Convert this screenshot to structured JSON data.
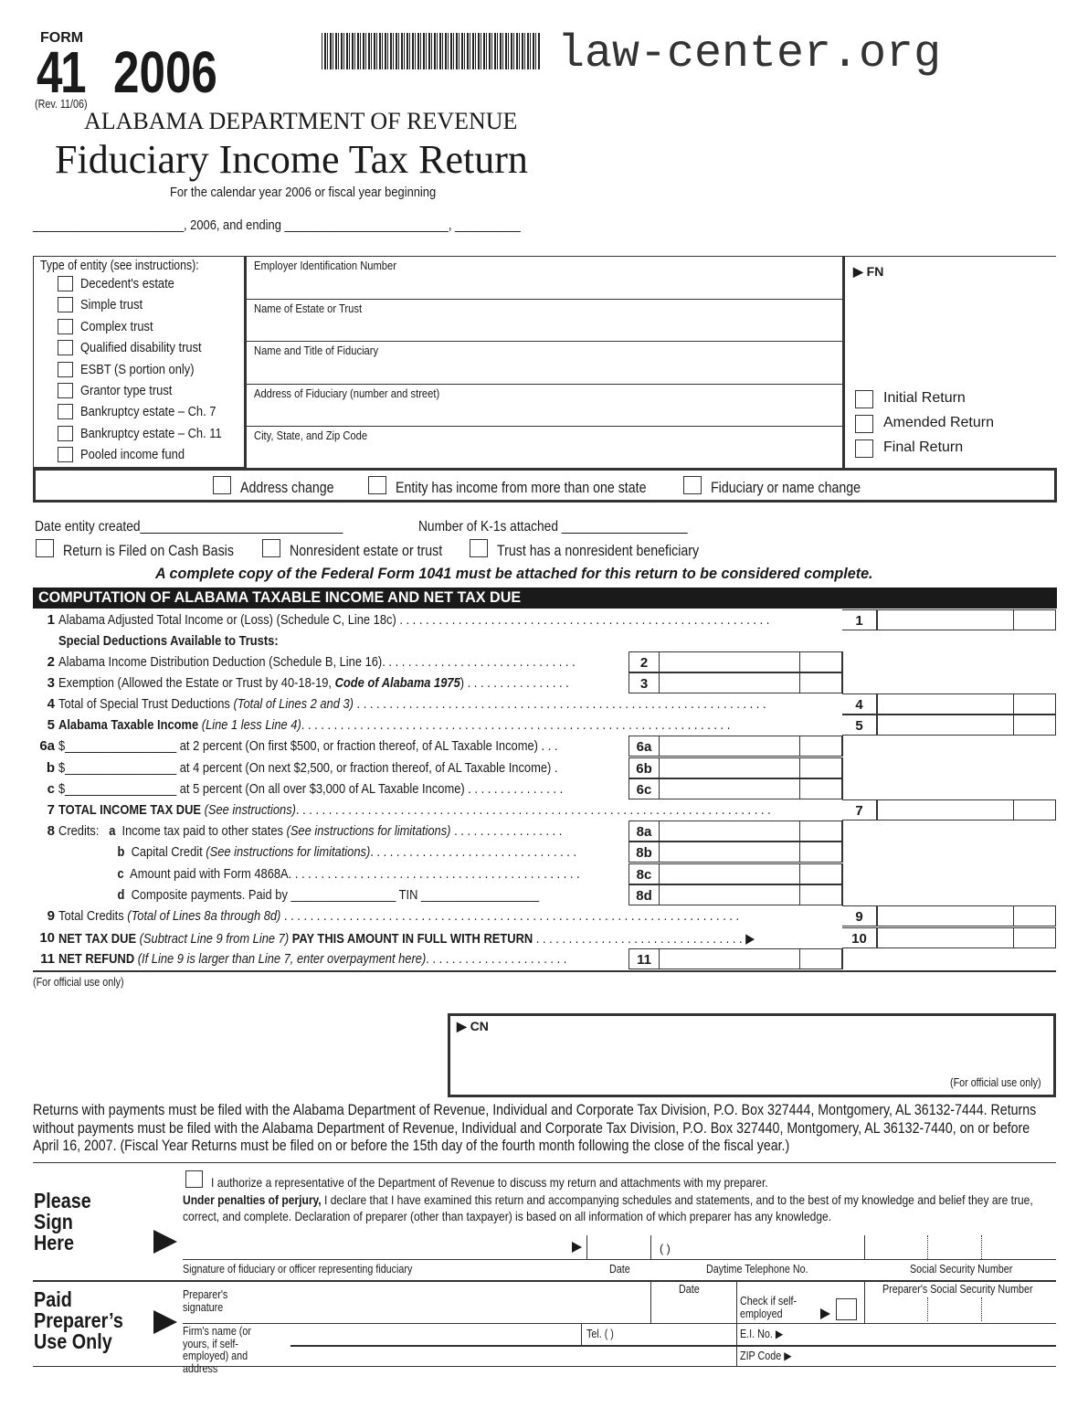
{
  "header": {
    "form_label": "FORM",
    "form_number": "41",
    "year": "2006",
    "revision": "(Rev. 11/06)",
    "department": "ALABAMA DEPARTMENT OF REVENUE",
    "title": "Fiduciary Income Tax Return",
    "period_line1": "For the calendar year 2006 or fiscal year beginning",
    "period_line2": "_______________________, 2006, and ending _________________________, __________",
    "watermark": "law-center.org"
  },
  "entity": {
    "heading": "Type of entity (see instructions):",
    "types": [
      "Decedent's estate",
      "Simple trust",
      "Complex trust",
      "Qualified disability trust",
      "ESBT (S portion only)",
      "Grantor type trust",
      "Bankruptcy estate – Ch. 7",
      "Bankruptcy estate – Ch. 11",
      "Pooled income fund"
    ]
  },
  "fields": [
    "Employer Identification Number",
    "Name of Estate or Trust",
    "Name and Title of Fiduciary",
    "Address of Fiduciary (number and street)",
    "City, State, and Zip Code"
  ],
  "fn_label": "FN",
  "return_types": [
    "Initial Return",
    "Amended Return",
    "Final Return"
  ],
  "changes": [
    "Address change",
    "Entity has income from more than one state",
    "Fiduciary or name change"
  ],
  "date_created": "Date entity created",
  "k1_count": "Number of K-1s attached",
  "options": [
    "Return is Filed on Cash Basis",
    "Nonresident estate or trust",
    "Trust has a nonresident beneficiary"
  ],
  "notice": "A complete copy of the Federal Form 1041 must be attached for this return to be considered complete.",
  "section_title": "COMPUTATION OF ALABAMA TAXABLE INCOME AND NET TAX DUE",
  "lines": [
    {
      "num": "1",
      "text": [
        [
          "Alabama Adjusted Total Income or (Loss) (Schedule C, Line 18c) . . . . . . . . . . . . . . . . . . . . . . . . . . . . . . . . . . . . . . . . . . . . . . . . . . . . . . . . .",
          ""
        ]
      ],
      "box": "right",
      "label": "1"
    },
    {
      "num": "",
      "text": [
        [
          "Special Deductions Available to Trusts:",
          "b"
        ]
      ],
      "box": "",
      "label": ""
    },
    {
      "num": "2",
      "text": [
        [
          "Alabama Income Distribution Deduction (Schedule B, Line 16). . . . . . . . . . . . . . . . . . . . . . . . . . . . . .",
          ""
        ]
      ],
      "box": "inner",
      "label": "2"
    },
    {
      "num": "3",
      "text": [
        [
          "Exemption (Allowed the Estate or Trust by 40-18-19, ",
          ""
        ],
        [
          "Code of Alabama 1975",
          "bi"
        ],
        [
          ") . . . . . . . . . . . . . . . .",
          ""
        ]
      ],
      "box": "inner",
      "label": "3"
    },
    {
      "num": "4",
      "text": [
        [
          "Total of Special Trust Deductions ",
          ""
        ],
        [
          "(Total of Lines 2 and 3)",
          "i"
        ],
        [
          " . . . . . . . . . . . . . . . . . . . . . . . . . . . . . . . . . . . . . . . . . . . . . . . . . . . . . . . . . . . . . . .",
          ""
        ]
      ],
      "box": "right",
      "label": "4"
    },
    {
      "num": "5",
      "text": [
        [
          "Alabama Taxable Income ",
          "b"
        ],
        [
          "(Line 1 less Line 4)",
          "i"
        ],
        [
          ". . . . . . . . . . . . . . . . . . . . . . . . . . . . . . . . . . . . . . . . . . . . . . . . . . . . . . . . . . . . . . . . . .",
          ""
        ]
      ],
      "box": "right",
      "label": "5"
    },
    {
      "num": "6a",
      "text": [
        [
          "$_________________ at 2 percent (On first $500, or fraction thereof, of AL Taxable Income) . . .",
          ""
        ]
      ],
      "box": "inner",
      "label": "6a"
    },
    {
      "num": "b",
      "text": [
        [
          "$_________________ at 4 percent (On next $2,500, or fraction thereof, of AL Taxable Income) .",
          ""
        ]
      ],
      "box": "inner",
      "label": "6b"
    },
    {
      "num": "c",
      "text": [
        [
          "$_________________ at 5 percent (On all over $3,000 of AL Taxable Income) . . . . . . . . . . . . . . .",
          ""
        ]
      ],
      "box": "inner",
      "label": "6c"
    },
    {
      "num": "7",
      "text": [
        [
          "TOTAL INCOME TAX DUE ",
          "b"
        ],
        [
          "(See instructions)",
          "i"
        ],
        [
          ". . . . . . . . . . . . . . . . . . . . . . . . . . . . . . . . . . . . . . . . . . . . . . . . . . . . . . . . . . . . . . . . . . . . . . . . .",
          ""
        ]
      ],
      "box": "right",
      "label": "7"
    },
    {
      "num": "8",
      "text": [
        [
          "Credits:   ",
          ""
        ],
        [
          "a",
          "b"
        ],
        [
          "  Income tax paid to other states ",
          ""
        ],
        [
          "(See instructions for limitations)",
          "i"
        ],
        [
          " . . . . . . . . . . . . . . . . .",
          ""
        ]
      ],
      "box": "inner",
      "label": "8a"
    },
    {
      "num": "",
      "text": [
        [
          "                  ",
          ""
        ],
        [
          "b",
          "b"
        ],
        [
          "  Capital Credit ",
          ""
        ],
        [
          "(See instructions for limitations)",
          "i"
        ],
        [
          ". . . . . . . . . . . . . . . . . . . . . . . . . . . . . . . .",
          ""
        ]
      ],
      "box": "inner",
      "label": "8b"
    },
    {
      "num": "",
      "text": [
        [
          "                  ",
          ""
        ],
        [
          "c",
          "b"
        ],
        [
          "  Amount paid with Form 4868A. . . . . . . . . . . . . . . . . . . . . . . . . . . . . . . . . . . . . . . . . . . . .",
          ""
        ]
      ],
      "box": "inner",
      "label": "8c"
    },
    {
      "num": "",
      "text": [
        [
          "                  ",
          ""
        ],
        [
          "d",
          "b"
        ],
        [
          "  Composite payments. Paid by ________________ TIN __________________",
          ""
        ]
      ],
      "box": "inner",
      "label": "8d"
    },
    {
      "num": "9",
      "text": [
        [
          "Total Credits ",
          ""
        ],
        [
          "(Total of Lines 8a through 8d)",
          "i"
        ],
        [
          " . . . . . . . . . . . . . . . . . . . . . . . . . . . . . . . . . . . . . . . . . . . . . . . . . . . . . . . . . . . . . . . . . . . . . .",
          ""
        ]
      ],
      "box": "right",
      "label": "9"
    },
    {
      "num": "10",
      "text": [
        [
          "NET TAX DUE ",
          "b"
        ],
        [
          "(Subtract Line 9 from Line 7) ",
          "i"
        ],
        [
          "PAY THIS AMOUNT IN FULL WITH RETURN",
          "b"
        ],
        [
          " . . . . . . . . . . . . . . . . . . . . . . . . . . . . . . . . ▶",
          ""
        ]
      ],
      "box": "right",
      "label": "10"
    },
    {
      "num": "11",
      "text": [
        [
          "NET REFUND ",
          "b"
        ],
        [
          "(If Line 9 is larger than Line 7, enter overpayment here)",
          "i"
        ],
        [
          ". . . . . . . . . . . . . . . . . . . . . .",
          ""
        ]
      ],
      "box": "inner",
      "label": "11"
    }
  ],
  "official_use": "(For official use only)",
  "cn_label": "CN",
  "cn_official_use": "(For official use only)",
  "filing_instructions": "Returns with payments must be filed with the Alabama Department of Revenue, Individual and Corporate Tax Division, P.O. Box 327444, Montgomery, AL 36132-7444.  Returns without payments must be filed with the Alabama Department of Revenue, Individual and Corporate Tax Division, P.O. Box 327440, Montgomery, AL 36132-7440, on or before April 16, 2007.  (Fiscal Year Returns must be filed on or before the 15th day of the fourth month following the close of the fiscal year.)",
  "sign": {
    "heading": [
      "Please",
      "Sign",
      "Here"
    ],
    "authorize": "I authorize a representative of the Department of Revenue to discuss my return and attachments with my preparer.",
    "penalty_bold": "Under penalties of perjury,",
    "penalty_text": " I declare that I have examined this return and accompanying schedules and statements, and to the best of my knowledge and belief they are true, correct, and complete. Declaration of preparer (other than taxpayer) is based on all information of which preparer has any knowledge.",
    "phone_paren": "(          )",
    "sig_label": "Signature of fiduciary or officer representing fiduciary",
    "date_label": "Date",
    "phone_label": "Daytime Telephone No.",
    "ssn_label": "Social Security Number"
  },
  "preparer": {
    "heading": [
      "Paid",
      "Preparer’s",
      "Use Only"
    ],
    "sig_label": "Preparer's signature",
    "date_label": "Date",
    "self_employed": "Check if self-employed",
    "ssn_label": "Preparer's Social Security Number",
    "firm_label": "Firm's name (or yours, if self-employed) and address",
    "tel_label": "Tel. (          )",
    "ein_label": "E.I. No.",
    "zip_label": "ZIP Code"
  }
}
